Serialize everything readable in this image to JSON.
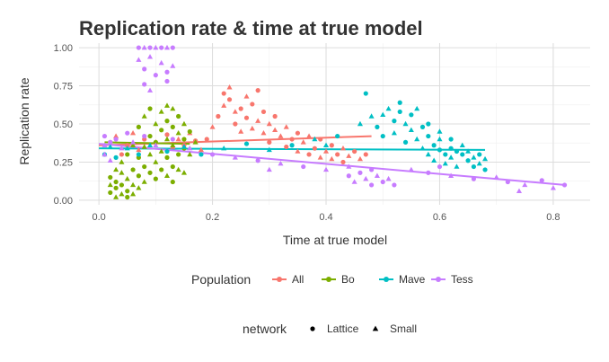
{
  "chart_data": {
    "type": "scatter",
    "title": "Replication rate & time at true model",
    "xlabel": "Time at true model",
    "ylabel": "Replication rate",
    "xlim": [
      -0.035,
      0.865
    ],
    "ylim": [
      -0.03,
      1.03
    ],
    "x_ticks": [
      0.0,
      0.2,
      0.4,
      0.6,
      0.8
    ],
    "x_tick_labels": [
      "0.0",
      "0.2",
      "0.4",
      "0.6",
      "0.8"
    ],
    "y_ticks": [
      0.0,
      0.25,
      0.5,
      0.75,
      1.0
    ],
    "y_tick_labels": [
      "0.00",
      "0.25",
      "0.50",
      "0.75",
      "1.00"
    ],
    "grid": true,
    "legend_placement": "bottom",
    "color_legend": {
      "title": "Population",
      "entries": [
        {
          "label": "All",
          "color": "#F8766D"
        },
        {
          "label": "Bo",
          "color": "#7CAE00"
        },
        {
          "label": "Mave",
          "color": "#00BFC4"
        },
        {
          "label": "Tess",
          "color": "#C77CFF"
        }
      ]
    },
    "shape_legend": {
      "title": "network",
      "entries": [
        {
          "label": "Lattice",
          "shape": "circle"
        },
        {
          "label": "Small",
          "shape": "triangle"
        }
      ]
    },
    "series": [
      {
        "name": "All",
        "color": "#F8766D",
        "trend": [
          [
            0.0,
            0.36
          ],
          [
            0.48,
            0.42
          ]
        ],
        "points": [
          [
            0.19,
            0.4
          ],
          [
            0.2,
            0.48
          ],
          [
            0.21,
            0.55
          ],
          [
            0.22,
            0.62
          ],
          [
            0.22,
            0.7
          ],
          [
            0.23,
            0.74
          ],
          [
            0.23,
            0.66
          ],
          [
            0.24,
            0.58
          ],
          [
            0.24,
            0.5
          ],
          [
            0.25,
            0.45
          ],
          [
            0.25,
            0.6
          ],
          [
            0.26,
            0.68
          ],
          [
            0.26,
            0.54
          ],
          [
            0.27,
            0.47
          ],
          [
            0.27,
            0.63
          ],
          [
            0.28,
            0.52
          ],
          [
            0.28,
            0.72
          ],
          [
            0.29,
            0.44
          ],
          [
            0.29,
            0.58
          ],
          [
            0.3,
            0.5
          ],
          [
            0.3,
            0.38
          ],
          [
            0.31,
            0.46
          ],
          [
            0.31,
            0.55
          ],
          [
            0.32,
            0.42
          ],
          [
            0.33,
            0.35
          ],
          [
            0.33,
            0.48
          ],
          [
            0.34,
            0.4
          ],
          [
            0.35,
            0.32
          ],
          [
            0.35,
            0.44
          ],
          [
            0.36,
            0.38
          ],
          [
            0.37,
            0.3
          ],
          [
            0.37,
            0.42
          ],
          [
            0.38,
            0.34
          ],
          [
            0.39,
            0.28
          ],
          [
            0.39,
            0.4
          ],
          [
            0.4,
            0.32
          ],
          [
            0.41,
            0.36
          ],
          [
            0.41,
            0.27
          ],
          [
            0.42,
            0.3
          ],
          [
            0.43,
            0.34
          ],
          [
            0.43,
            0.25
          ],
          [
            0.44,
            0.29
          ],
          [
            0.45,
            0.32
          ],
          [
            0.46,
            0.27
          ],
          [
            0.47,
            0.3
          ],
          [
            0.14,
            0.4
          ],
          [
            0.15,
            0.36
          ],
          [
            0.16,
            0.44
          ],
          [
            0.17,
            0.39
          ],
          [
            0.18,
            0.33
          ],
          [
            0.02,
            0.38
          ],
          [
            0.03,
            0.42
          ],
          [
            0.05,
            0.36
          ],
          [
            0.06,
            0.44
          ],
          [
            0.08,
            0.4
          ],
          [
            0.1,
            0.38
          ],
          [
            0.12,
            0.43
          ],
          [
            0.13,
            0.35
          ],
          [
            0.04,
            0.3
          ],
          [
            0.07,
            0.33
          ]
        ]
      },
      {
        "name": "Bo",
        "color": "#7CAE00",
        "trend": [
          [
            0.01,
            0.38
          ],
          [
            0.16,
            0.37
          ]
        ],
        "points": [
          [
            0.02,
            0.05
          ],
          [
            0.02,
            0.1
          ],
          [
            0.02,
            0.15
          ],
          [
            0.03,
            0.02
          ],
          [
            0.03,
            0.08
          ],
          [
            0.03,
            0.2
          ],
          [
            0.03,
            0.12
          ],
          [
            0.04,
            0.04
          ],
          [
            0.04,
            0.1
          ],
          [
            0.04,
            0.18
          ],
          [
            0.05,
            0.06
          ],
          [
            0.05,
            0.14
          ],
          [
            0.05,
            0.02
          ],
          [
            0.06,
            0.1
          ],
          [
            0.06,
            0.2
          ],
          [
            0.06,
            0.04
          ],
          [
            0.07,
            0.16
          ],
          [
            0.07,
            0.08
          ],
          [
            0.07,
            0.28
          ],
          [
            0.08,
            0.12
          ],
          [
            0.08,
            0.22
          ],
          [
            0.08,
            0.35
          ],
          [
            0.09,
            0.18
          ],
          [
            0.09,
            0.3
          ],
          [
            0.09,
            0.42
          ],
          [
            0.1,
            0.25
          ],
          [
            0.1,
            0.38
          ],
          [
            0.1,
            0.5
          ],
          [
            0.11,
            0.2
          ],
          [
            0.11,
            0.32
          ],
          [
            0.11,
            0.46
          ],
          [
            0.11,
            0.58
          ],
          [
            0.12,
            0.28
          ],
          [
            0.12,
            0.4
          ],
          [
            0.12,
            0.52
          ],
          [
            0.12,
            0.62
          ],
          [
            0.13,
            0.22
          ],
          [
            0.13,
            0.36
          ],
          [
            0.13,
            0.48
          ],
          [
            0.13,
            0.6
          ],
          [
            0.14,
            0.3
          ],
          [
            0.14,
            0.44
          ],
          [
            0.14,
            0.55
          ],
          [
            0.14,
            0.2
          ],
          [
            0.15,
            0.4
          ],
          [
            0.15,
            0.5
          ],
          [
            0.15,
            0.34
          ],
          [
            0.16,
            0.3
          ],
          [
            0.16,
            0.45
          ],
          [
            0.17,
            0.38
          ],
          [
            0.07,
            0.48
          ],
          [
            0.08,
            0.55
          ],
          [
            0.09,
            0.6
          ],
          [
            0.06,
            0.36
          ],
          [
            0.05,
            0.3
          ],
          [
            0.04,
            0.25
          ],
          [
            0.1,
            0.14
          ],
          [
            0.12,
            0.16
          ],
          [
            0.13,
            0.12
          ],
          [
            0.15,
            0.18
          ]
        ]
      },
      {
        "name": "Mave",
        "color": "#00BFC4",
        "trend": [
          [
            0.0,
            0.34
          ],
          [
            0.68,
            0.33
          ]
        ],
        "points": [
          [
            0.01,
            0.3
          ],
          [
            0.02,
            0.35
          ],
          [
            0.03,
            0.28
          ],
          [
            0.05,
            0.34
          ],
          [
            0.07,
            0.3
          ],
          [
            0.09,
            0.36
          ],
          [
            0.12,
            0.32
          ],
          [
            0.15,
            0.35
          ],
          [
            0.18,
            0.3
          ],
          [
            0.22,
            0.34
          ],
          [
            0.26,
            0.37
          ],
          [
            0.3,
            0.33
          ],
          [
            0.34,
            0.36
          ],
          [
            0.38,
            0.4
          ],
          [
            0.42,
            0.42
          ],
          [
            0.46,
            0.5
          ],
          [
            0.47,
            0.7
          ],
          [
            0.48,
            0.55
          ],
          [
            0.49,
            0.48
          ],
          [
            0.5,
            0.56
          ],
          [
            0.5,
            0.42
          ],
          [
            0.51,
            0.6
          ],
          [
            0.52,
            0.52
          ],
          [
            0.52,
            0.44
          ],
          [
            0.53,
            0.58
          ],
          [
            0.54,
            0.5
          ],
          [
            0.54,
            0.38
          ],
          [
            0.55,
            0.46
          ],
          [
            0.55,
            0.56
          ],
          [
            0.56,
            0.4
          ],
          [
            0.57,
            0.48
          ],
          [
            0.57,
            0.34
          ],
          [
            0.58,
            0.42
          ],
          [
            0.58,
            0.3
          ],
          [
            0.59,
            0.36
          ],
          [
            0.59,
            0.26
          ],
          [
            0.6,
            0.33
          ],
          [
            0.6,
            0.4
          ],
          [
            0.61,
            0.3
          ],
          [
            0.61,
            0.24
          ],
          [
            0.62,
            0.34
          ],
          [
            0.62,
            0.28
          ],
          [
            0.63,
            0.32
          ],
          [
            0.63,
            0.22
          ],
          [
            0.64,
            0.3
          ],
          [
            0.64,
            0.36
          ],
          [
            0.65,
            0.26
          ],
          [
            0.65,
            0.32
          ],
          [
            0.66,
            0.22
          ],
          [
            0.66,
            0.28
          ],
          [
            0.67,
            0.3
          ],
          [
            0.67,
            0.24
          ],
          [
            0.68,
            0.2
          ],
          [
            0.68,
            0.27
          ],
          [
            0.58,
            0.5
          ],
          [
            0.56,
            0.6
          ],
          [
            0.53,
            0.64
          ],
          [
            0.6,
            0.45
          ],
          [
            0.62,
            0.4
          ],
          [
            0.4,
            0.36
          ]
        ]
      },
      {
        "name": "Tess",
        "color": "#C77CFF",
        "trend": [
          [
            0.0,
            0.37
          ],
          [
            0.82,
            0.1
          ]
        ],
        "points": [
          [
            0.07,
            1.0
          ],
          [
            0.08,
            1.0
          ],
          [
            0.09,
            1.0
          ],
          [
            0.1,
            1.0
          ],
          [
            0.11,
            1.0
          ],
          [
            0.12,
            1.0
          ],
          [
            0.13,
            1.0
          ],
          [
            0.07,
            0.92
          ],
          [
            0.08,
            0.86
          ],
          [
            0.09,
            0.94
          ],
          [
            0.1,
            0.82
          ],
          [
            0.11,
            0.9
          ],
          [
            0.12,
            0.84
          ],
          [
            0.13,
            0.88
          ],
          [
            0.08,
            0.76
          ],
          [
            0.09,
            0.72
          ],
          [
            0.12,
            0.78
          ],
          [
            0.01,
            0.36
          ],
          [
            0.01,
            0.42
          ],
          [
            0.01,
            0.3
          ],
          [
            0.02,
            0.38
          ],
          [
            0.02,
            0.26
          ],
          [
            0.03,
            0.4
          ],
          [
            0.04,
            0.34
          ],
          [
            0.05,
            0.44
          ],
          [
            0.06,
            0.38
          ],
          [
            0.08,
            0.42
          ],
          [
            0.1,
            0.36
          ],
          [
            0.13,
            0.4
          ],
          [
            0.16,
            0.34
          ],
          [
            0.2,
            0.3
          ],
          [
            0.24,
            0.28
          ],
          [
            0.28,
            0.26
          ],
          [
            0.32,
            0.24
          ],
          [
            0.36,
            0.22
          ],
          [
            0.4,
            0.2
          ],
          [
            0.44,
            0.16
          ],
          [
            0.45,
            0.12
          ],
          [
            0.46,
            0.18
          ],
          [
            0.47,
            0.14
          ],
          [
            0.48,
            0.1
          ],
          [
            0.49,
            0.16
          ],
          [
            0.5,
            0.12
          ],
          [
            0.51,
            0.14
          ],
          [
            0.52,
            0.1
          ],
          [
            0.44,
            0.22
          ],
          [
            0.48,
            0.2
          ],
          [
            0.55,
            0.2
          ],
          [
            0.58,
            0.18
          ],
          [
            0.62,
            0.16
          ],
          [
            0.66,
            0.14
          ],
          [
            0.7,
            0.15
          ],
          [
            0.72,
            0.12
          ],
          [
            0.75,
            0.1
          ],
          [
            0.78,
            0.13
          ],
          [
            0.8,
            0.08
          ],
          [
            0.82,
            0.1
          ],
          [
            0.74,
            0.06
          ],
          [
            0.6,
            0.22
          ],
          [
            0.3,
            0.2
          ]
        ]
      }
    ]
  }
}
